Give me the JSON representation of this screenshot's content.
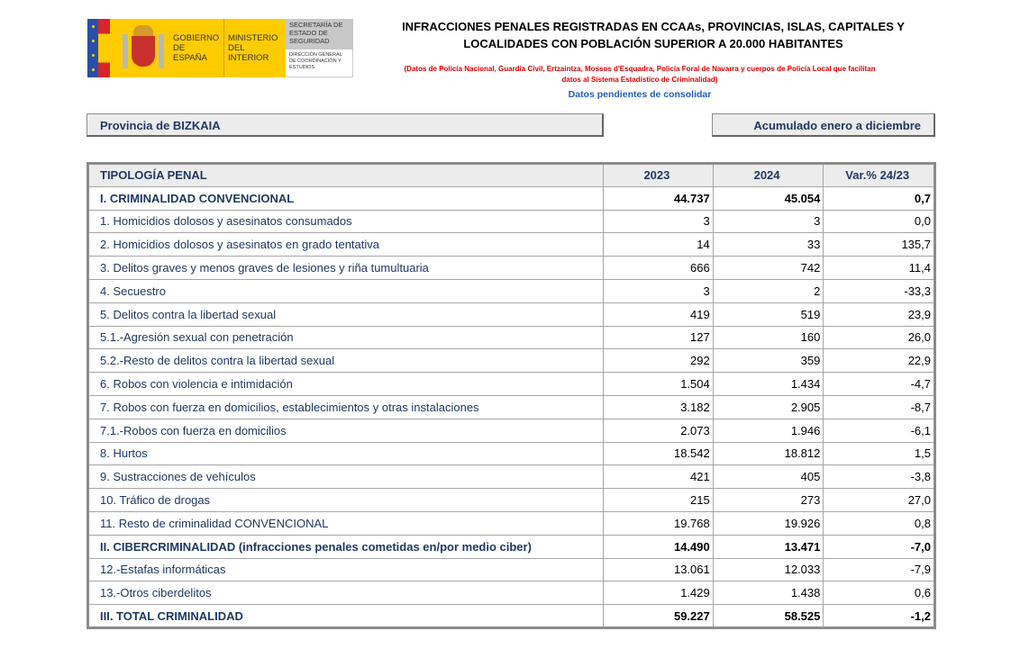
{
  "logo": {
    "gobierno": "GOBIERNO DE ESPAÑA",
    "ministerio": "MINISTERIO DEL INTERIOR",
    "secretaria": "SECRETARÍA DE ESTADO DE SEGURIDAD",
    "direccion": "DIRECCIÓN GENERAL DE COORDINACIÓN Y ESTUDIOS"
  },
  "header": {
    "title": "INFRACCIONES PENALES REGISTRADAS EN CCAAs, PROVINCIAS, ISLAS, CAPITALES Y LOCALIDADES CON POBLACIÓN SUPERIOR A 20.000 HABITANTES",
    "subtitle": "(Datos de Policía Nacional, Guardia Civil, Ertzaintza, Mossos d'Esquadra, Policía Foral de Navarra y cuerpos de Policía Local que facilitan datos al Sistema Estadístico de Criminalidad)",
    "pending": "Datos pendientes de consolidar"
  },
  "filters": {
    "province": "Provincia de BIZKAIA",
    "period": "Acumulado enero a diciembre"
  },
  "table": {
    "columns": [
      "TIPOLOGÍA PENAL",
      "2023",
      "2024",
      "Var.% 24/23"
    ],
    "rows": [
      {
        "label": "I. CRIMINALIDAD CONVENCIONAL",
        "y2023": "44.737",
        "y2024": "45.054",
        "var": "0,7",
        "bold": true
      },
      {
        "label": "1. Homicidios dolosos y asesinatos consumados",
        "y2023": "3",
        "y2024": "3",
        "var": "0,0"
      },
      {
        "label": "2. Homicidios dolosos y asesinatos en grado tentativa",
        "y2023": "14",
        "y2024": "33",
        "var": "135,7"
      },
      {
        "label": "3. Delitos graves y menos graves de lesiones y riña tumultuaria",
        "y2023": "666",
        "y2024": "742",
        "var": "11,4"
      },
      {
        "label": "4. Secuestro",
        "y2023": "3",
        "y2024": "2",
        "var": "-33,3"
      },
      {
        "label": "5. Delitos contra la libertad sexual",
        "y2023": "419",
        "y2024": "519",
        "var": "23,9"
      },
      {
        "label": "5.1.-Agresión sexual con penetración",
        "y2023": "127",
        "y2024": "160",
        "var": "26,0"
      },
      {
        "label": "5.2.-Resto de delitos contra la libertad sexual",
        "y2023": "292",
        "y2024": "359",
        "var": "22,9"
      },
      {
        "label": "6. Robos con violencia e intimidación",
        "y2023": "1.504",
        "y2024": "1.434",
        "var": "-4,7"
      },
      {
        "label": "7. Robos con fuerza en domicilios, establecimientos y otras instalaciones",
        "y2023": "3.182",
        "y2024": "2.905",
        "var": "-8,7"
      },
      {
        "label": "7.1.-Robos con fuerza en domicilios",
        "y2023": "2.073",
        "y2024": "1.946",
        "var": "-6,1"
      },
      {
        "label": "8. Hurtos",
        "y2023": "18.542",
        "y2024": "18.812",
        "var": "1,5"
      },
      {
        "label": "9. Sustracciones de vehículos",
        "y2023": "421",
        "y2024": "405",
        "var": "-3,8"
      },
      {
        "label": "10. Tráfico de drogas",
        "y2023": "215",
        "y2024": "273",
        "var": "27,0"
      },
      {
        "label": "11. Resto de criminalidad CONVENCIONAL",
        "y2023": "19.768",
        "y2024": "19.926",
        "var": "0,8"
      },
      {
        "label": "II. CIBERCRIMINALIDAD (infracciones penales cometidas en/por medio ciber)",
        "y2023": "14.490",
        "y2024": "13.471",
        "var": "-7,0",
        "bold": true
      },
      {
        "label": "12.-Estafas informáticas",
        "y2023": "13.061",
        "y2024": "12.033",
        "var": "-7,9"
      },
      {
        "label": "13.-Otros ciberdelitos",
        "y2023": "1.429",
        "y2024": "1.438",
        "var": "0,6"
      },
      {
        "label": "III. TOTAL CRIMINALIDAD",
        "y2023": "59.227",
        "y2024": "58.525",
        "var": "-1,2",
        "bold": true
      }
    ]
  }
}
